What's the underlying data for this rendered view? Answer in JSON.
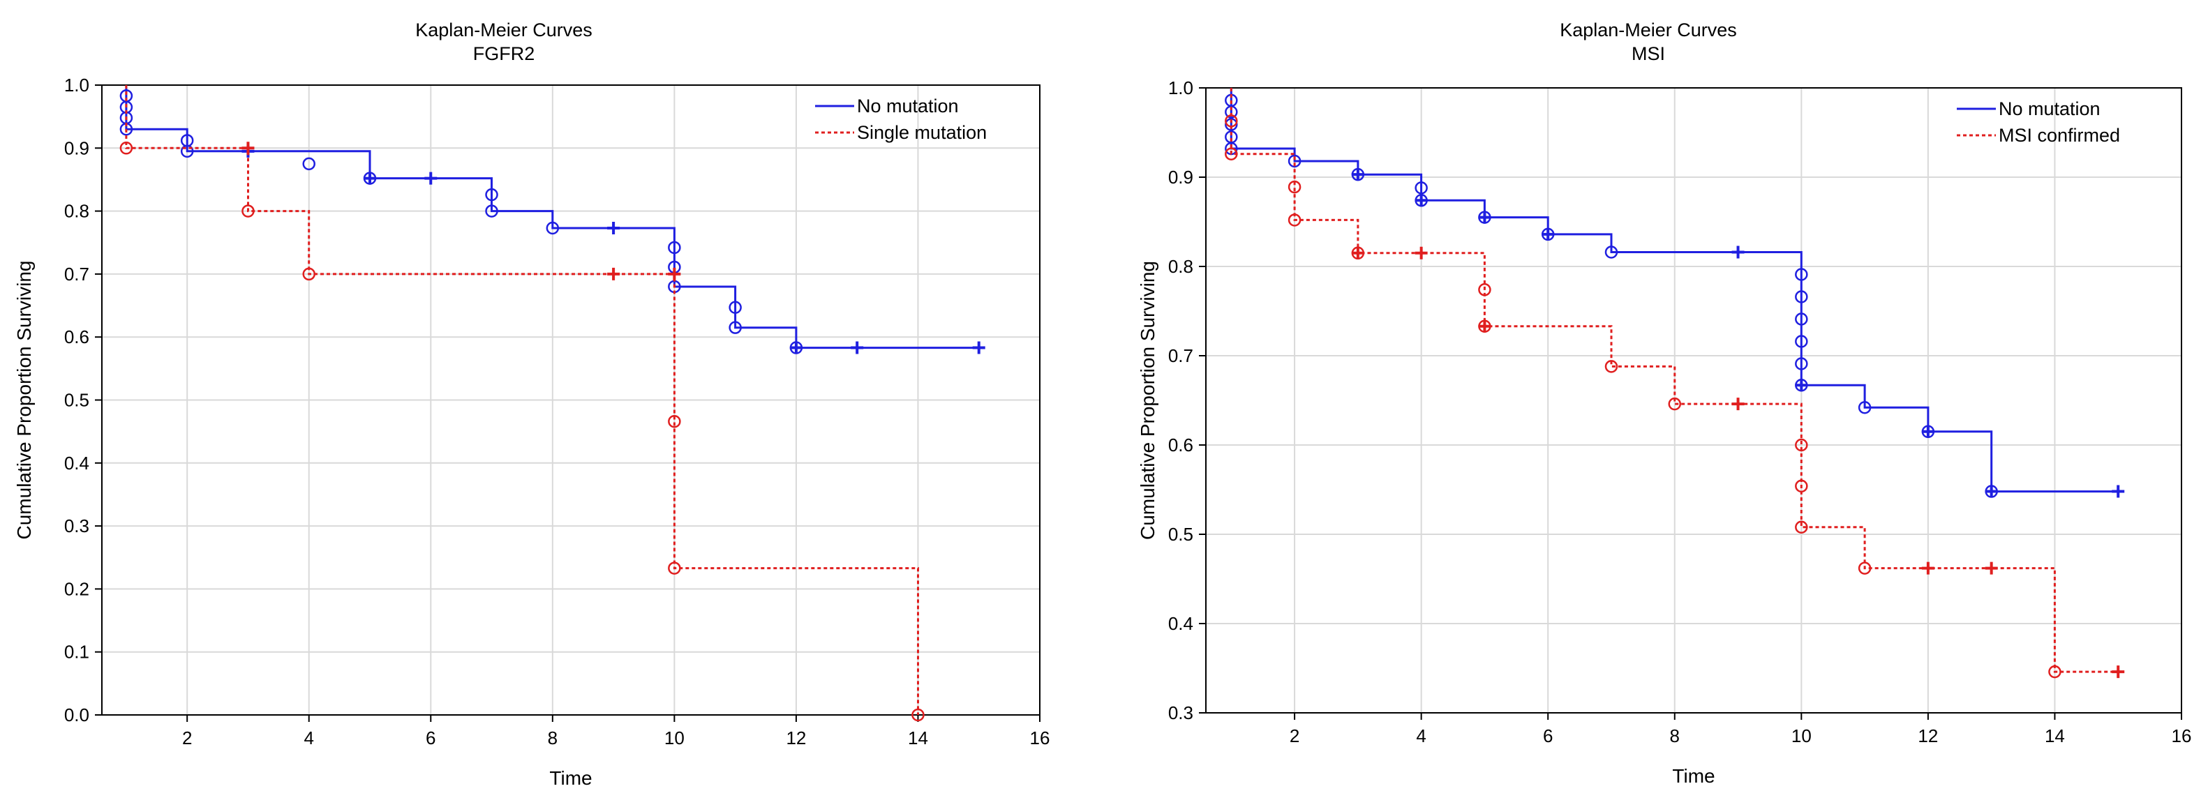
{
  "chart_data": [
    {
      "type": "line",
      "subtype": "kaplan-meier-step",
      "title": "Kaplan-Meier Curves",
      "subtitle": "FGFR2",
      "xlabel": "Time",
      "ylabel": "Cumulative Proportion Surviving",
      "xlim": [
        0.6,
        16
      ],
      "ylim": [
        0.0,
        1.0
      ],
      "xticks": [
        2,
        4,
        6,
        8,
        10,
        12,
        14,
        16
      ],
      "yticks": [
        0.0,
        0.1,
        0.2,
        0.3,
        0.4,
        0.5,
        0.6,
        0.7,
        0.8,
        0.9,
        1.0
      ],
      "ytick_labels": [
        "0.0",
        "0.1",
        "0.2",
        "0.3",
        "0.4",
        "0.5",
        "0.6",
        "0.7",
        "0.8",
        "0.9",
        "1.0"
      ],
      "grid": true,
      "legend_position": "top-right",
      "series": [
        {
          "name": "No mutation",
          "color": "#1f1fe0",
          "dash": "solid",
          "steps": [
            [
              1,
              1.0
            ],
            [
              1,
              0.93
            ],
            [
              2,
              0.93
            ],
            [
              2,
              0.895
            ],
            [
              5,
              0.895
            ],
            [
              5,
              0.875
            ],
            [
              5,
              0.852
            ],
            [
              7,
              0.852
            ],
            [
              7,
              0.8
            ],
            [
              8,
              0.8
            ],
            [
              8,
              0.773
            ],
            [
              10,
              0.773
            ],
            [
              10,
              0.68
            ],
            [
              11,
              0.68
            ],
            [
              11,
              0.615
            ],
            [
              12,
              0.615
            ],
            [
              12,
              0.583
            ],
            [
              15,
              0.583
            ]
          ],
          "complete": [
            [
              1,
              0.983
            ],
            [
              1,
              0.965
            ],
            [
              1,
              0.948
            ],
            [
              1,
              0.93
            ],
            [
              2,
              0.912
            ],
            [
              2,
              0.895
            ],
            [
              4,
              0.875
            ],
            [
              5,
              0.852
            ],
            [
              7,
              0.826
            ],
            [
              7,
              0.8
            ],
            [
              8,
              0.773
            ],
            [
              10,
              0.742
            ],
            [
              10,
              0.711
            ],
            [
              10,
              0.68
            ],
            [
              11,
              0.647
            ],
            [
              11,
              0.615
            ],
            [
              12,
              0.583
            ]
          ],
          "censored": [
            [
              3,
              0.895
            ],
            [
              5,
              0.852
            ],
            [
              6,
              0.852
            ],
            [
              9,
              0.773
            ],
            [
              12,
              0.583
            ],
            [
              13,
              0.583
            ],
            [
              15,
              0.583
            ]
          ]
        },
        {
          "name": "Single mutation",
          "color": "#e01f1f",
          "dash": "dotted",
          "steps": [
            [
              1,
              1.0
            ],
            [
              1,
              0.9
            ],
            [
              3,
              0.9
            ],
            [
              3,
              0.8
            ],
            [
              4,
              0.8
            ],
            [
              4,
              0.7
            ],
            [
              10,
              0.7
            ],
            [
              10,
              0.233
            ],
            [
              14,
              0.233
            ],
            [
              14,
              0.0
            ]
          ],
          "complete": [
            [
              1,
              0.9
            ],
            [
              3,
              0.8
            ],
            [
              4,
              0.7
            ],
            [
              10,
              0.466
            ],
            [
              10,
              0.233
            ],
            [
              14,
              0.0
            ]
          ],
          "censored": [
            [
              3,
              0.9
            ],
            [
              9,
              0.7
            ],
            [
              10,
              0.7
            ]
          ]
        }
      ]
    },
    {
      "type": "line",
      "subtype": "kaplan-meier-step",
      "title": "Kaplan-Meier Curves",
      "subtitle": "MSI",
      "xlabel": "Time",
      "ylabel": "Cumulative Proportion Surviving",
      "xlim": [
        0.6,
        16
      ],
      "ylim": [
        0.3,
        1.0
      ],
      "xticks": [
        2,
        4,
        6,
        8,
        10,
        12,
        14,
        16
      ],
      "yticks": [
        0.3,
        0.4,
        0.5,
        0.6,
        0.7,
        0.8,
        0.9,
        1.0
      ],
      "ytick_labels": [
        "0.3",
        "0.4",
        "0.5",
        "0.6",
        "0.7",
        "0.8",
        "0.9",
        "1.0"
      ],
      "grid": true,
      "legend_position": "top-right",
      "series": [
        {
          "name": "No mutation",
          "color": "#1f1fe0",
          "dash": "solid",
          "steps": [
            [
              1,
              1.0
            ],
            [
              1,
              0.932
            ],
            [
              2,
              0.932
            ],
            [
              2,
              0.918
            ],
            [
              3,
              0.918
            ],
            [
              3,
              0.903
            ],
            [
              4,
              0.903
            ],
            [
              4,
              0.874
            ],
            [
              5,
              0.874
            ],
            [
              5,
              0.855
            ],
            [
              6,
              0.855
            ],
            [
              6,
              0.836
            ],
            [
              7,
              0.836
            ],
            [
              7,
              0.816
            ],
            [
              10,
              0.816
            ],
            [
              10,
              0.667
            ],
            [
              11,
              0.667
            ],
            [
              11,
              0.642
            ],
            [
              12,
              0.642
            ],
            [
              12,
              0.615
            ],
            [
              13,
              0.615
            ],
            [
              13,
              0.548
            ],
            [
              15,
              0.548
            ]
          ],
          "complete": [
            [
              1,
              0.986
            ],
            [
              1,
              0.973
            ],
            [
              1,
              0.959
            ],
            [
              1,
              0.945
            ],
            [
              1,
              0.932
            ],
            [
              2,
              0.918
            ],
            [
              3,
              0.903
            ],
            [
              4,
              0.888
            ],
            [
              4,
              0.874
            ],
            [
              5,
              0.855
            ],
            [
              6,
              0.836
            ],
            [
              7,
              0.816
            ],
            [
              10,
              0.791
            ],
            [
              10,
              0.766
            ],
            [
              10,
              0.741
            ],
            [
              10,
              0.716
            ],
            [
              10,
              0.691
            ],
            [
              10,
              0.667
            ],
            [
              11,
              0.642
            ],
            [
              12,
              0.615
            ],
            [
              13,
              0.548
            ]
          ],
          "censored": [
            [
              3,
              0.903
            ],
            [
              4,
              0.874
            ],
            [
              5,
              0.855
            ],
            [
              6,
              0.836
            ],
            [
              9,
              0.816
            ],
            [
              10,
              0.667
            ],
            [
              12,
              0.615
            ],
            [
              13,
              0.548
            ],
            [
              15,
              0.548
            ]
          ]
        },
        {
          "name": "MSI confirmed",
          "color": "#e01f1f",
          "dash": "dotted",
          "steps": [
            [
              1,
              1.0
            ],
            [
              1,
              0.926
            ],
            [
              2,
              0.926
            ],
            [
              2,
              0.852
            ],
            [
              3,
              0.852
            ],
            [
              3,
              0.815
            ],
            [
              5,
              0.815
            ],
            [
              5,
              0.733
            ],
            [
              7,
              0.733
            ],
            [
              7,
              0.688
            ],
            [
              8,
              0.688
            ],
            [
              8,
              0.646
            ],
            [
              10,
              0.646
            ],
            [
              10,
              0.508
            ],
            [
              11,
              0.508
            ],
            [
              11,
              0.462
            ],
            [
              14,
              0.462
            ],
            [
              14,
              0.346
            ],
            [
              15,
              0.346
            ]
          ],
          "complete": [
            [
              1,
              0.963
            ],
            [
              1,
              0.926
            ],
            [
              2,
              0.889
            ],
            [
              2,
              0.852
            ],
            [
              3,
              0.815
            ],
            [
              5,
              0.774
            ],
            [
              5,
              0.733
            ],
            [
              7,
              0.688
            ],
            [
              8,
              0.646
            ],
            [
              10,
              0.6
            ],
            [
              10,
              0.554
            ],
            [
              10,
              0.508
            ],
            [
              11,
              0.462
            ],
            [
              14,
              0.346
            ]
          ],
          "censored": [
            [
              3,
              0.815
            ],
            [
              4,
              0.815
            ],
            [
              5,
              0.733
            ],
            [
              9,
              0.646
            ],
            [
              12,
              0.462
            ],
            [
              13,
              0.462
            ],
            [
              15,
              0.346
            ]
          ]
        }
      ]
    }
  ]
}
